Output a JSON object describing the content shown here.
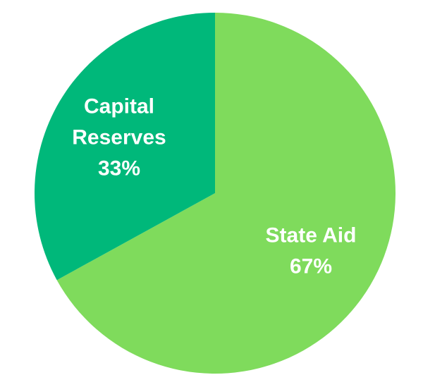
{
  "chart_data": {
    "type": "pie",
    "title": "",
    "slices": [
      {
        "name": "State Aid",
        "value": 67,
        "value_label": "67%",
        "label_lines": [
          "State Aid"
        ],
        "color": "#7FDB5C"
      },
      {
        "name": "Capital Reserves",
        "value": 33,
        "value_label": "33%",
        "label_lines": [
          "Capital",
          "Reserves"
        ],
        "color": "#00B87A"
      }
    ],
    "start_angle_deg": 0,
    "direction": "clockwise",
    "legend": "none"
  }
}
